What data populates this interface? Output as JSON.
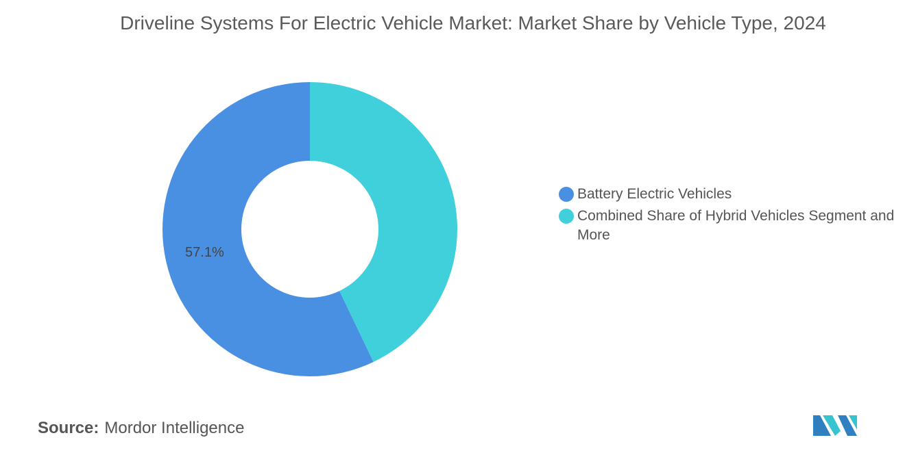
{
  "chart_data": {
    "type": "donut",
    "title": "Driveline Systems For Electric Vehicle Market: Market Share by Vehicle Type, 2024",
    "categories": [
      "Battery Electric Vehicles",
      "Combined Share of Hybrid Vehicles Segment and More"
    ],
    "values": [
      57.1,
      42.9
    ],
    "value_labels": [
      "57.1%",
      null
    ],
    "colors": [
      "#4a90e2",
      "#40d0db"
    ],
    "legend": "right"
  },
  "source": {
    "label": "Source:",
    "text": "Mordor Intelligence"
  }
}
